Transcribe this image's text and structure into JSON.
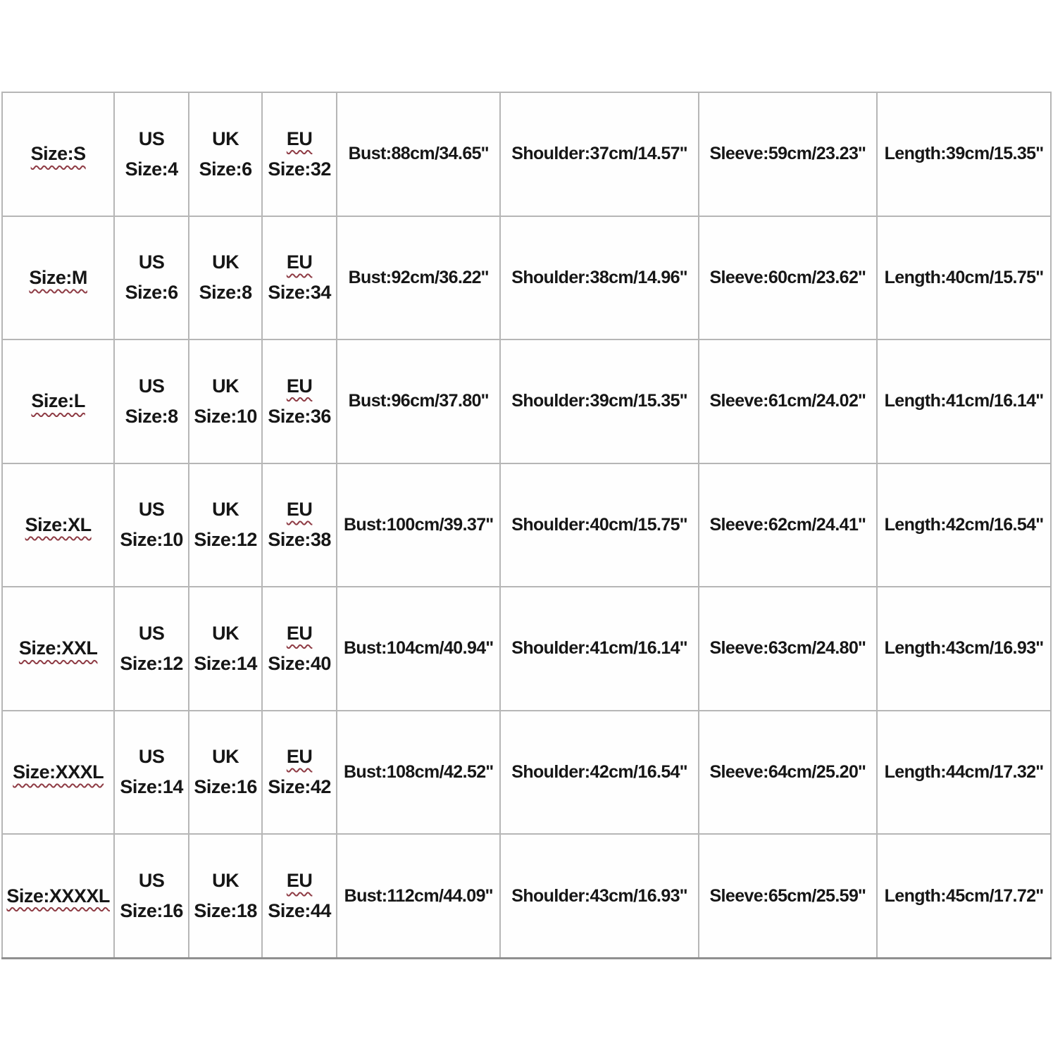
{
  "page": {
    "background_color": "#ffffff",
    "text_color": "#161616",
    "grid_line_color": "#b6b6b6",
    "squiggle_underline_color": "#8e3b44"
  },
  "size_chart": {
    "type": "table",
    "column_keys": [
      "size",
      "us_size",
      "uk_size",
      "eu_size",
      "bust",
      "shoulder",
      "sleeve",
      "length"
    ],
    "rows": [
      {
        "size": "Size:S",
        "us_line1": "US",
        "us_line2": "Size:4",
        "uk_line1": "UK",
        "uk_line2": "Size:6",
        "eu_line1": "EU",
        "eu_line2": "Size:32",
        "bust": "Bust:88cm/34.65''",
        "shoulder": "Shoulder:37cm/14.57''",
        "sleeve": "Sleeve:59cm/23.23''",
        "length": "Length:39cm/15.35''"
      },
      {
        "size": "Size:M",
        "us_line1": "US",
        "us_line2": "Size:6",
        "uk_line1": "UK",
        "uk_line2": "Size:8",
        "eu_line1": "EU",
        "eu_line2": "Size:34",
        "bust": "Bust:92cm/36.22''",
        "shoulder": "Shoulder:38cm/14.96''",
        "sleeve": "Sleeve:60cm/23.62''",
        "length": "Length:40cm/15.75''"
      },
      {
        "size": "Size:L",
        "us_line1": "US",
        "us_line2": "Size:8",
        "uk_line1": "UK",
        "uk_line2": "Size:10",
        "eu_line1": "EU",
        "eu_line2": "Size:36",
        "bust": "Bust:96cm/37.80''",
        "shoulder": "Shoulder:39cm/15.35''",
        "sleeve": "Sleeve:61cm/24.02''",
        "length": "Length:41cm/16.14''"
      },
      {
        "size": "Size:XL",
        "us_line1": "US",
        "us_line2": "Size:10",
        "uk_line1": "UK",
        "uk_line2": "Size:12",
        "eu_line1": "EU",
        "eu_line2": "Size:38",
        "bust": "Bust:100cm/39.37''",
        "shoulder": "Shoulder:40cm/15.75''",
        "sleeve": "Sleeve:62cm/24.41''",
        "length": "Length:42cm/16.54''"
      },
      {
        "size": "Size:XXL",
        "us_line1": "US",
        "us_line2": "Size:12",
        "uk_line1": "UK",
        "uk_line2": "Size:14",
        "eu_line1": "EU",
        "eu_line2": "Size:40",
        "bust": "Bust:104cm/40.94''",
        "shoulder": "Shoulder:41cm/16.14''",
        "sleeve": "Sleeve:63cm/24.80''",
        "length": "Length:43cm/16.93''"
      },
      {
        "size": "Size:XXXL",
        "us_line1": "US",
        "us_line2": "Size:14",
        "uk_line1": "UK",
        "uk_line2": "Size:16",
        "eu_line1": "EU",
        "eu_line2": "Size:42",
        "bust": "Bust:108cm/42.52''",
        "shoulder": "Shoulder:42cm/16.54''",
        "sleeve": "Sleeve:64cm/25.20''",
        "length": "Length:44cm/17.32''"
      },
      {
        "size": "Size:XXXXL",
        "us_line1": "US",
        "us_line2": "Size:16",
        "uk_line1": "UK",
        "uk_line2": "Size:18",
        "eu_line1": "EU",
        "eu_line2": "Size:44",
        "bust": "Bust:112cm/44.09''",
        "shoulder": "Shoulder:43cm/16.93''",
        "sleeve": "Sleeve:65cm/25.59''",
        "length": "Length:45cm/17.72''"
      }
    ]
  }
}
